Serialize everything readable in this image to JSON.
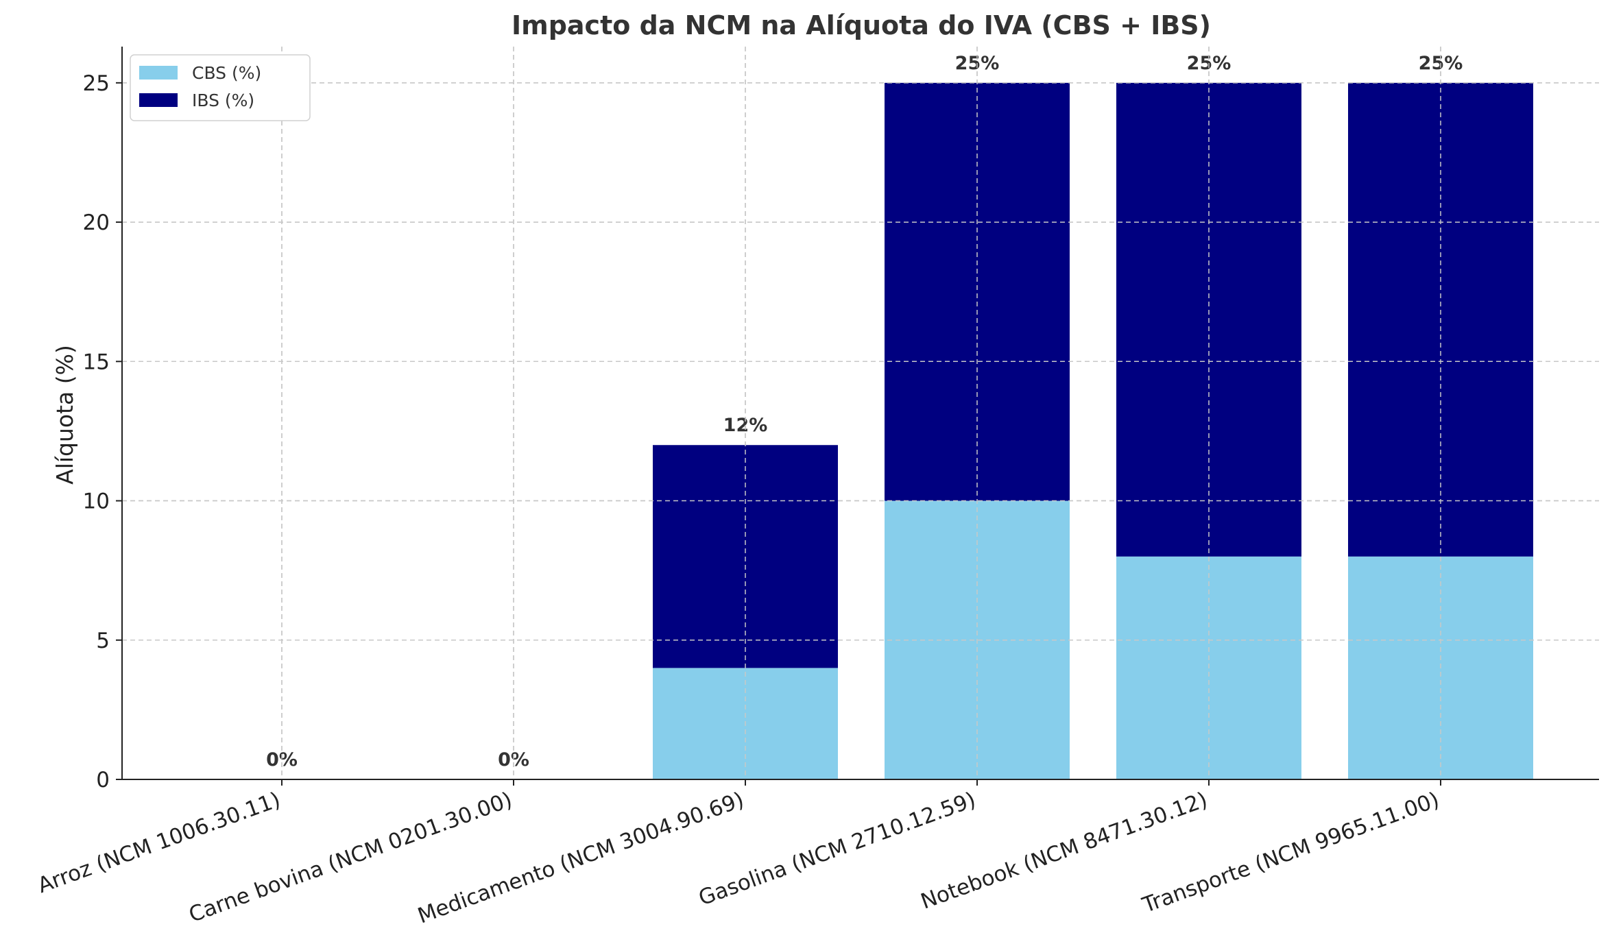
{
  "chart_data": {
    "type": "bar",
    "stacked": true,
    "title": "Impacto da NCM na Alíquota do IVA (CBS + IBS)",
    "xlabel": "",
    "ylabel": "Alíquota (%)",
    "ylim": [
      0,
      26.3
    ],
    "yticks": [
      0,
      5,
      10,
      15,
      20,
      25
    ],
    "grid": true,
    "legend_position": "top-left",
    "categories": [
      "Arroz (NCM 1006.30.11)",
      "Carne bovina (NCM 0201.30.00)",
      "Medicamento (NCM 3004.90.69)",
      "Gasolina (NCM 2710.12.59)",
      "Notebook (NCM 8471.30.12)",
      "Transporte (NCM 9965.11.00)"
    ],
    "series": [
      {
        "name": "CBS (%)",
        "color": "#87CEEB",
        "values": [
          0,
          0,
          4,
          10,
          8,
          8
        ]
      },
      {
        "name": "IBS (%)",
        "color": "#000080",
        "values": [
          0,
          0,
          8,
          15,
          17,
          17
        ]
      }
    ],
    "total_labels": [
      "0%",
      "0%",
      "12%",
      "25%",
      "25%",
      "25%"
    ]
  }
}
